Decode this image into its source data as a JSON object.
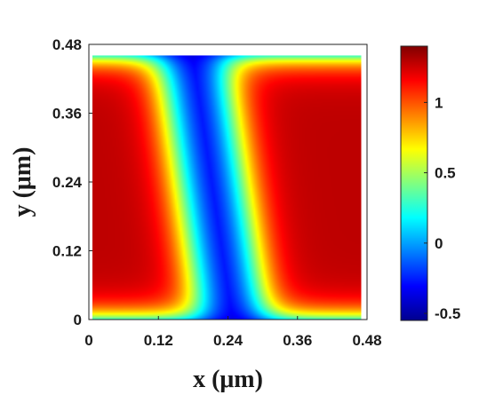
{
  "chart_data": {
    "type": "heatmap",
    "title": "",
    "xlabel": "x (μm)",
    "ylabel": "y (μm)",
    "xlim": [
      0,
      0.48
    ],
    "ylim": [
      0,
      0.48
    ],
    "data_extent_x": [
      0,
      0.47
    ],
    "data_extent_y": [
      0,
      0.47
    ],
    "x_ticks": [
      "0",
      "0.12",
      "0.24",
      "0.36",
      "0.48"
    ],
    "y_ticks": [
      "0",
      "0.12",
      "0.24",
      "0.36",
      "0.48"
    ],
    "x_tick_values": [
      0,
      0.12,
      0.24,
      0.36,
      0.48
    ],
    "y_tick_values": [
      0,
      0.12,
      0.24,
      0.36,
      0.48
    ],
    "colormap": "jet",
    "colorbar": {
      "range": [
        -0.55,
        1.4
      ],
      "tick_values": [
        -0.5,
        0,
        0.5,
        1
      ],
      "ticks": [
        "-0.5",
        "0",
        "0.5",
        "1"
      ],
      "colors": [
        "#00008f",
        "#0000ff",
        "#0080ff",
        "#00ffff",
        "#80ff80",
        "#ffff00",
        "#ff8000",
        "#ff0000",
        "#800000"
      ]
    },
    "grid": false,
    "description_values": {
      "left_lobe_max": 1.4,
      "right_lobe_max": 1.4,
      "center_min": -0.5
    }
  }
}
